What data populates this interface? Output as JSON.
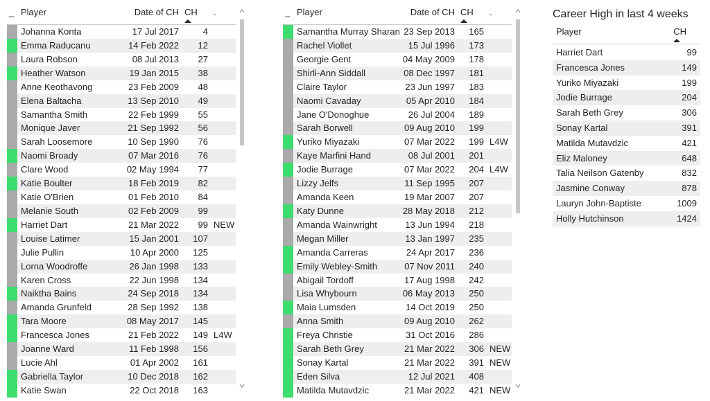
{
  "tables": [
    {
      "columns": [
        "_",
        "Player",
        "Date of CH",
        "CH",
        "."
      ],
      "rows": [
        [
          "Johanna Konta",
          "17 Jul 2017",
          4,
          null
        ],
        [
          "Emma Raducanu",
          "14 Feb 2022",
          12,
          null
        ],
        [
          "Laura Robson",
          "08 Jul 2013",
          27,
          null
        ],
        [
          "Heather Watson",
          "19 Jan 2015",
          38,
          null
        ],
        [
          "Anne Keothavong",
          "23 Feb 2009",
          48,
          null
        ],
        [
          "Elena Baltacha",
          "13 Sep 2010",
          49,
          null
        ],
        [
          "Samantha Smith",
          "22 Feb 1999",
          55,
          null
        ],
        [
          "Monique Javer",
          "21 Sep 1992",
          56,
          null
        ],
        [
          "Sarah Loosemore",
          "10 Sep 1990",
          76,
          null
        ],
        [
          "Naomi Broady",
          "07 Mar 2016",
          76,
          null
        ],
        [
          "Clare Wood",
          "02 May 1994",
          77,
          null
        ],
        [
          "Katie Boulter",
          "18 Feb 2019",
          82,
          null
        ],
        [
          "Katie O'Brien",
          "01 Feb 2010",
          84,
          null
        ],
        [
          "Melanie South",
          "02 Feb 2009",
          99,
          null
        ],
        [
          "Harriet Dart",
          "21 Mar 2022",
          99,
          "NEW"
        ],
        [
          "Louise Latimer",
          "15 Jan 2001",
          107,
          null
        ],
        [
          "Julie Pullin",
          "10 Apr 2000",
          125,
          null
        ],
        [
          "Lorna Woodroffe",
          "26 Jan 1998",
          133,
          null
        ],
        [
          "Karen Cross",
          "22 Jun 1998",
          134,
          null
        ],
        [
          "Naiktha Bains",
          "24 Sep 2018",
          134,
          null
        ],
        [
          "Amanda Grunfeld",
          "28 Sep 1992",
          138,
          null
        ],
        [
          "Tara Moore",
          "08 May 2017",
          145,
          null
        ],
        [
          "Francesca Jones",
          "21 Feb 2022",
          149,
          "L4W"
        ],
        [
          "Joanne Ward",
          "11 Feb 1998",
          156,
          null
        ],
        [
          "Lucie Ahl",
          "01 Apr 2002",
          161,
          null
        ],
        [
          "Gabriella Taylor",
          "10 Dec 2018",
          162,
          null
        ],
        [
          "Katie Swan",
          "22 Oct 2018",
          163,
          null
        ]
      ],
      "marker_colors": [
        "#aaaaaa",
        "#3ddc6e",
        "#aaaaaa",
        "#3ddc6e",
        "#aaaaaa",
        "#aaaaaa",
        "#aaaaaa",
        "#aaaaaa",
        "#aaaaaa",
        "#3ddc6e",
        "#aaaaaa",
        "#3ddc6e",
        "#aaaaaa",
        "#aaaaaa",
        "#3ddc6e",
        "#aaaaaa",
        "#aaaaaa",
        "#aaaaaa",
        "#aaaaaa",
        "#3ddc6e",
        "#aaaaaa",
        "#3ddc6e",
        "#3ddc6e",
        "#aaaaaa",
        "#aaaaaa",
        "#3ddc6e",
        "#3ddc6e"
      ]
    },
    {
      "columns": [
        "_",
        "Player",
        "Date of CH",
        "CH",
        "."
      ],
      "rows": [
        [
          "Samantha Murray Sharan",
          "23 Sep 2013",
          165,
          null
        ],
        [
          "Rachel Viollet",
          "15 Jul 1996",
          173,
          null
        ],
        [
          "Georgie Gent",
          "04 May 2009",
          178,
          null
        ],
        [
          "Shirli-Ann Siddall",
          "08 Dec 1997",
          181,
          null
        ],
        [
          "Claire Taylor",
          "23 Jun 1997",
          183,
          null
        ],
        [
          "Naomi Cavaday",
          "05 Apr 2010",
          184,
          null
        ],
        [
          "Jane O'Donoghue",
          "26 Jul 2004",
          189,
          null
        ],
        [
          "Sarah Borwell",
          "09 Aug 2010",
          199,
          null
        ],
        [
          "Yuriko Miyazaki",
          "07 Mar 2022",
          199,
          "L4W"
        ],
        [
          "Kaye Marfini Hand",
          "08 Jul 2001",
          201,
          null
        ],
        [
          "Jodie Burrage",
          "07 Mar 2022",
          204,
          "L4W"
        ],
        [
          "Lizzy Jelfs",
          "11 Sep 1995",
          207,
          null
        ],
        [
          "Amanda Keen",
          "19 Mar 2007",
          207,
          null
        ],
        [
          "Katy Dunne",
          "28 May 2018",
          212,
          null
        ],
        [
          "Amanda Wainwright",
          "13 Jun 1994",
          218,
          null
        ],
        [
          "Megan Miller",
          "13 Jan 1997",
          235,
          null
        ],
        [
          "Amanda Carreras",
          "24 Apr 2017",
          236,
          null
        ],
        [
          "Emily Webley-Smith",
          "07 Nov 2011",
          240,
          null
        ],
        [
          "Abigail Tordoff",
          "17 Aug 1998",
          242,
          null
        ],
        [
          "Lisa Whybourn",
          "06 May 2013",
          250,
          null
        ],
        [
          "Maia Lumsden",
          "14 Oct 2019",
          250,
          null
        ],
        [
          "Anna Smith",
          "09 Aug 2010",
          262,
          null
        ],
        [
          "Freya Christie",
          "31 Oct 2016",
          286,
          null
        ],
        [
          "Sarah Beth Grey",
          "21 Mar 2022",
          306,
          "NEW"
        ],
        [
          "Sonay Kartal",
          "21 Mar 2022",
          391,
          "NEW"
        ],
        [
          "Eden Silva",
          "12 Jul 2021",
          408,
          null
        ],
        [
          "Matilda Mutavdzic",
          "21 Mar 2022",
          421,
          "NEW"
        ]
      ],
      "marker_colors": [
        "#3ddc6e",
        "#aaaaaa",
        "#aaaaaa",
        "#aaaaaa",
        "#aaaaaa",
        "#aaaaaa",
        "#aaaaaa",
        "#aaaaaa",
        "#3ddc6e",
        "#aaaaaa",
        "#3ddc6e",
        "#aaaaaa",
        "#aaaaaa",
        "#3ddc6e",
        "#aaaaaa",
        "#aaaaaa",
        "#3ddc6e",
        "#3ddc6e",
        "#aaaaaa",
        "#aaaaaa",
        "#3ddc6e",
        "#aaaaaa",
        "#3ddc6e",
        "#3ddc6e",
        "#3ddc6e",
        "#3ddc6e",
        "#3ddc6e"
      ]
    }
  ],
  "summary": {
    "title": "Career High in last 4 weeks",
    "columns": [
      "Player",
      "CH"
    ],
    "rows": [
      [
        "Harriet Dart",
        99
      ],
      [
        "Francesca Jones",
        149
      ],
      [
        "Yuriko Miyazaki",
        199
      ],
      [
        "Jodie Burrage",
        204
      ],
      [
        "Sarah Beth Grey",
        306
      ],
      [
        "Sonay Kartal",
        391
      ],
      [
        "Matilda Mutavdzic",
        421
      ],
      [
        "Eliz Maloney",
        648
      ],
      [
        "Talia Neilson Gatenby",
        832
      ],
      [
        "Jasmine Conway",
        878
      ],
      [
        "Lauryn John-Baptiste",
        1009
      ],
      [
        "Holly Hutchinson",
        1424
      ]
    ]
  }
}
